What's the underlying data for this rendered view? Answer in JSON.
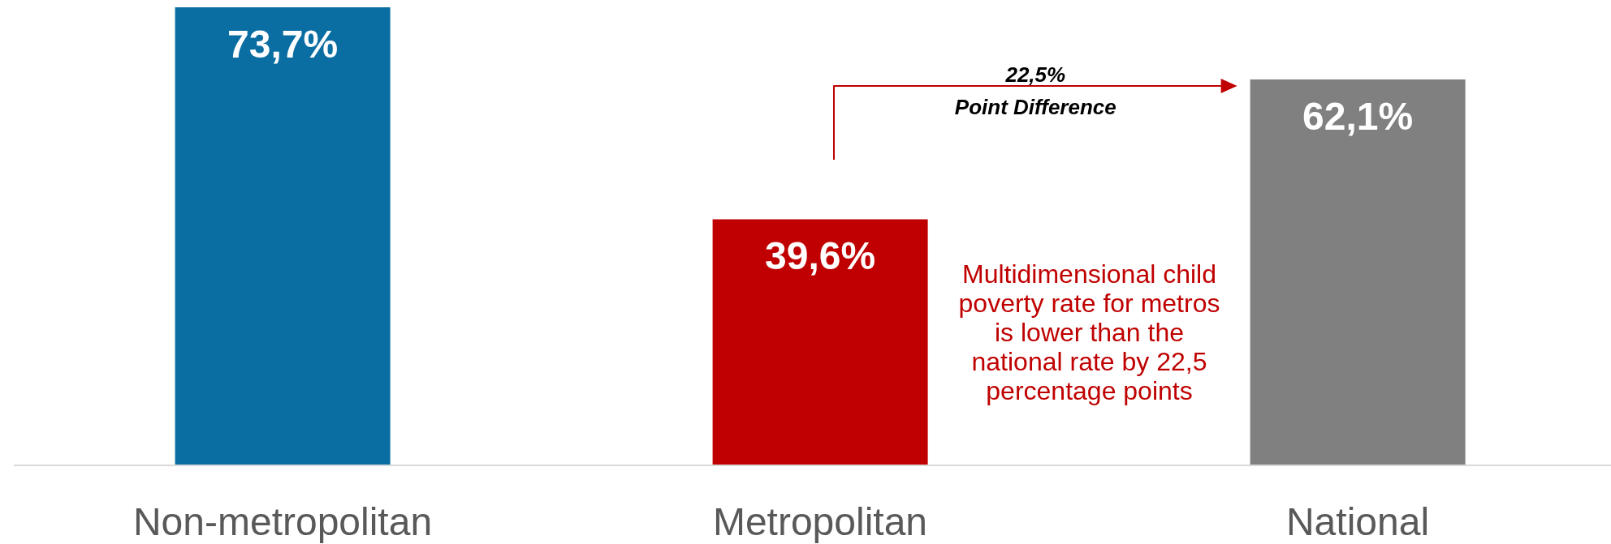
{
  "chart_data": {
    "type": "bar",
    "categories": [
      "Non-metropolitan",
      "Metropolitan",
      "National"
    ],
    "values": [
      73.7,
      39.6,
      62.1
    ],
    "colors": [
      "#0b6ea2",
      "#c00000",
      "#808080"
    ],
    "value_labels": [
      "73,7%",
      "39,6%",
      "62,1%"
    ],
    "annotations": [
      "22,5%\nPoint Difference",
      "Multidimensional child poverty rate for metros is lower than the national rate by 22,5 percentage points"
    ]
  }
}
